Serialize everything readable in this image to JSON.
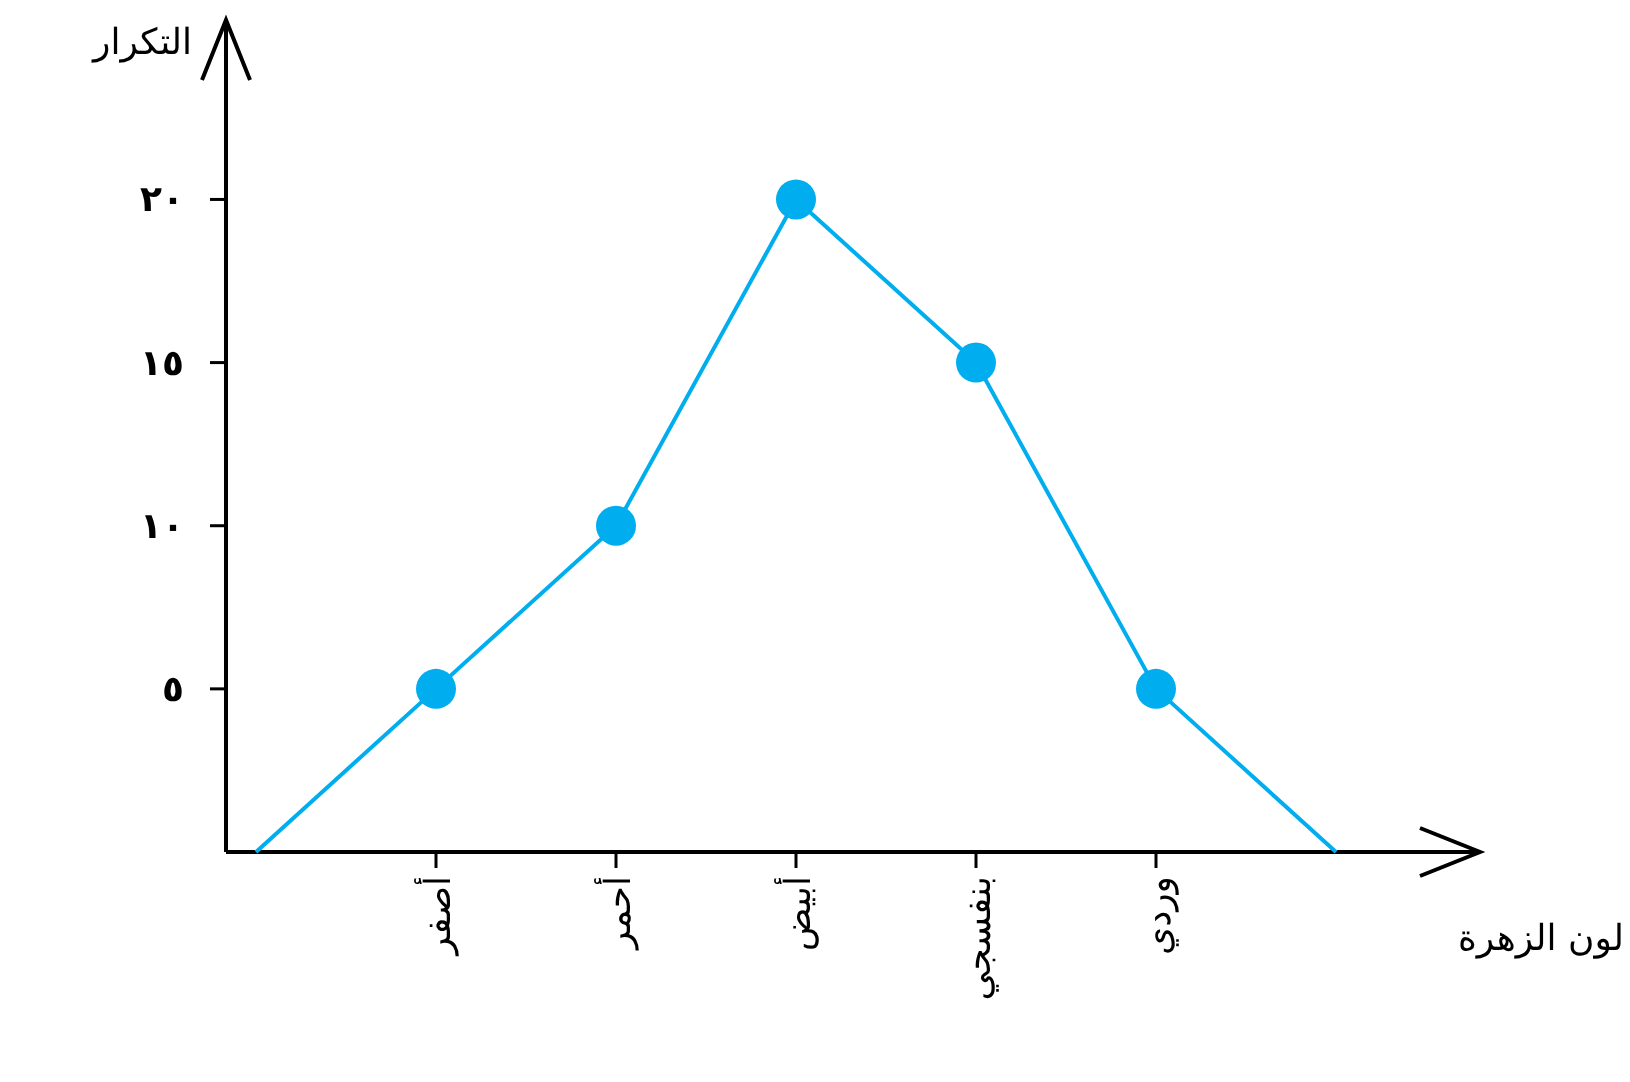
{
  "chart_data": {
    "type": "line",
    "xlabel": "لون الزهرة",
    "ylabel": "التكرار",
    "categories": [
      null,
      "أصفر",
      "أحمر",
      "أبيض",
      "بنفسجي",
      "وردي",
      null
    ],
    "values": [
      0,
      5,
      10,
      20,
      15,
      5,
      0
    ],
    "color": "#00aeef",
    "marker": "circle",
    "ylim": [
      0,
      25.5
    ],
    "yticks": [
      {
        "value": 5,
        "label": "٥"
      },
      {
        "value": 10,
        "label": "١٠"
      },
      {
        "value": 15,
        "label": "١٥"
      },
      {
        "value": 20,
        "label": "٢٠"
      }
    ],
    "grid": false
  }
}
